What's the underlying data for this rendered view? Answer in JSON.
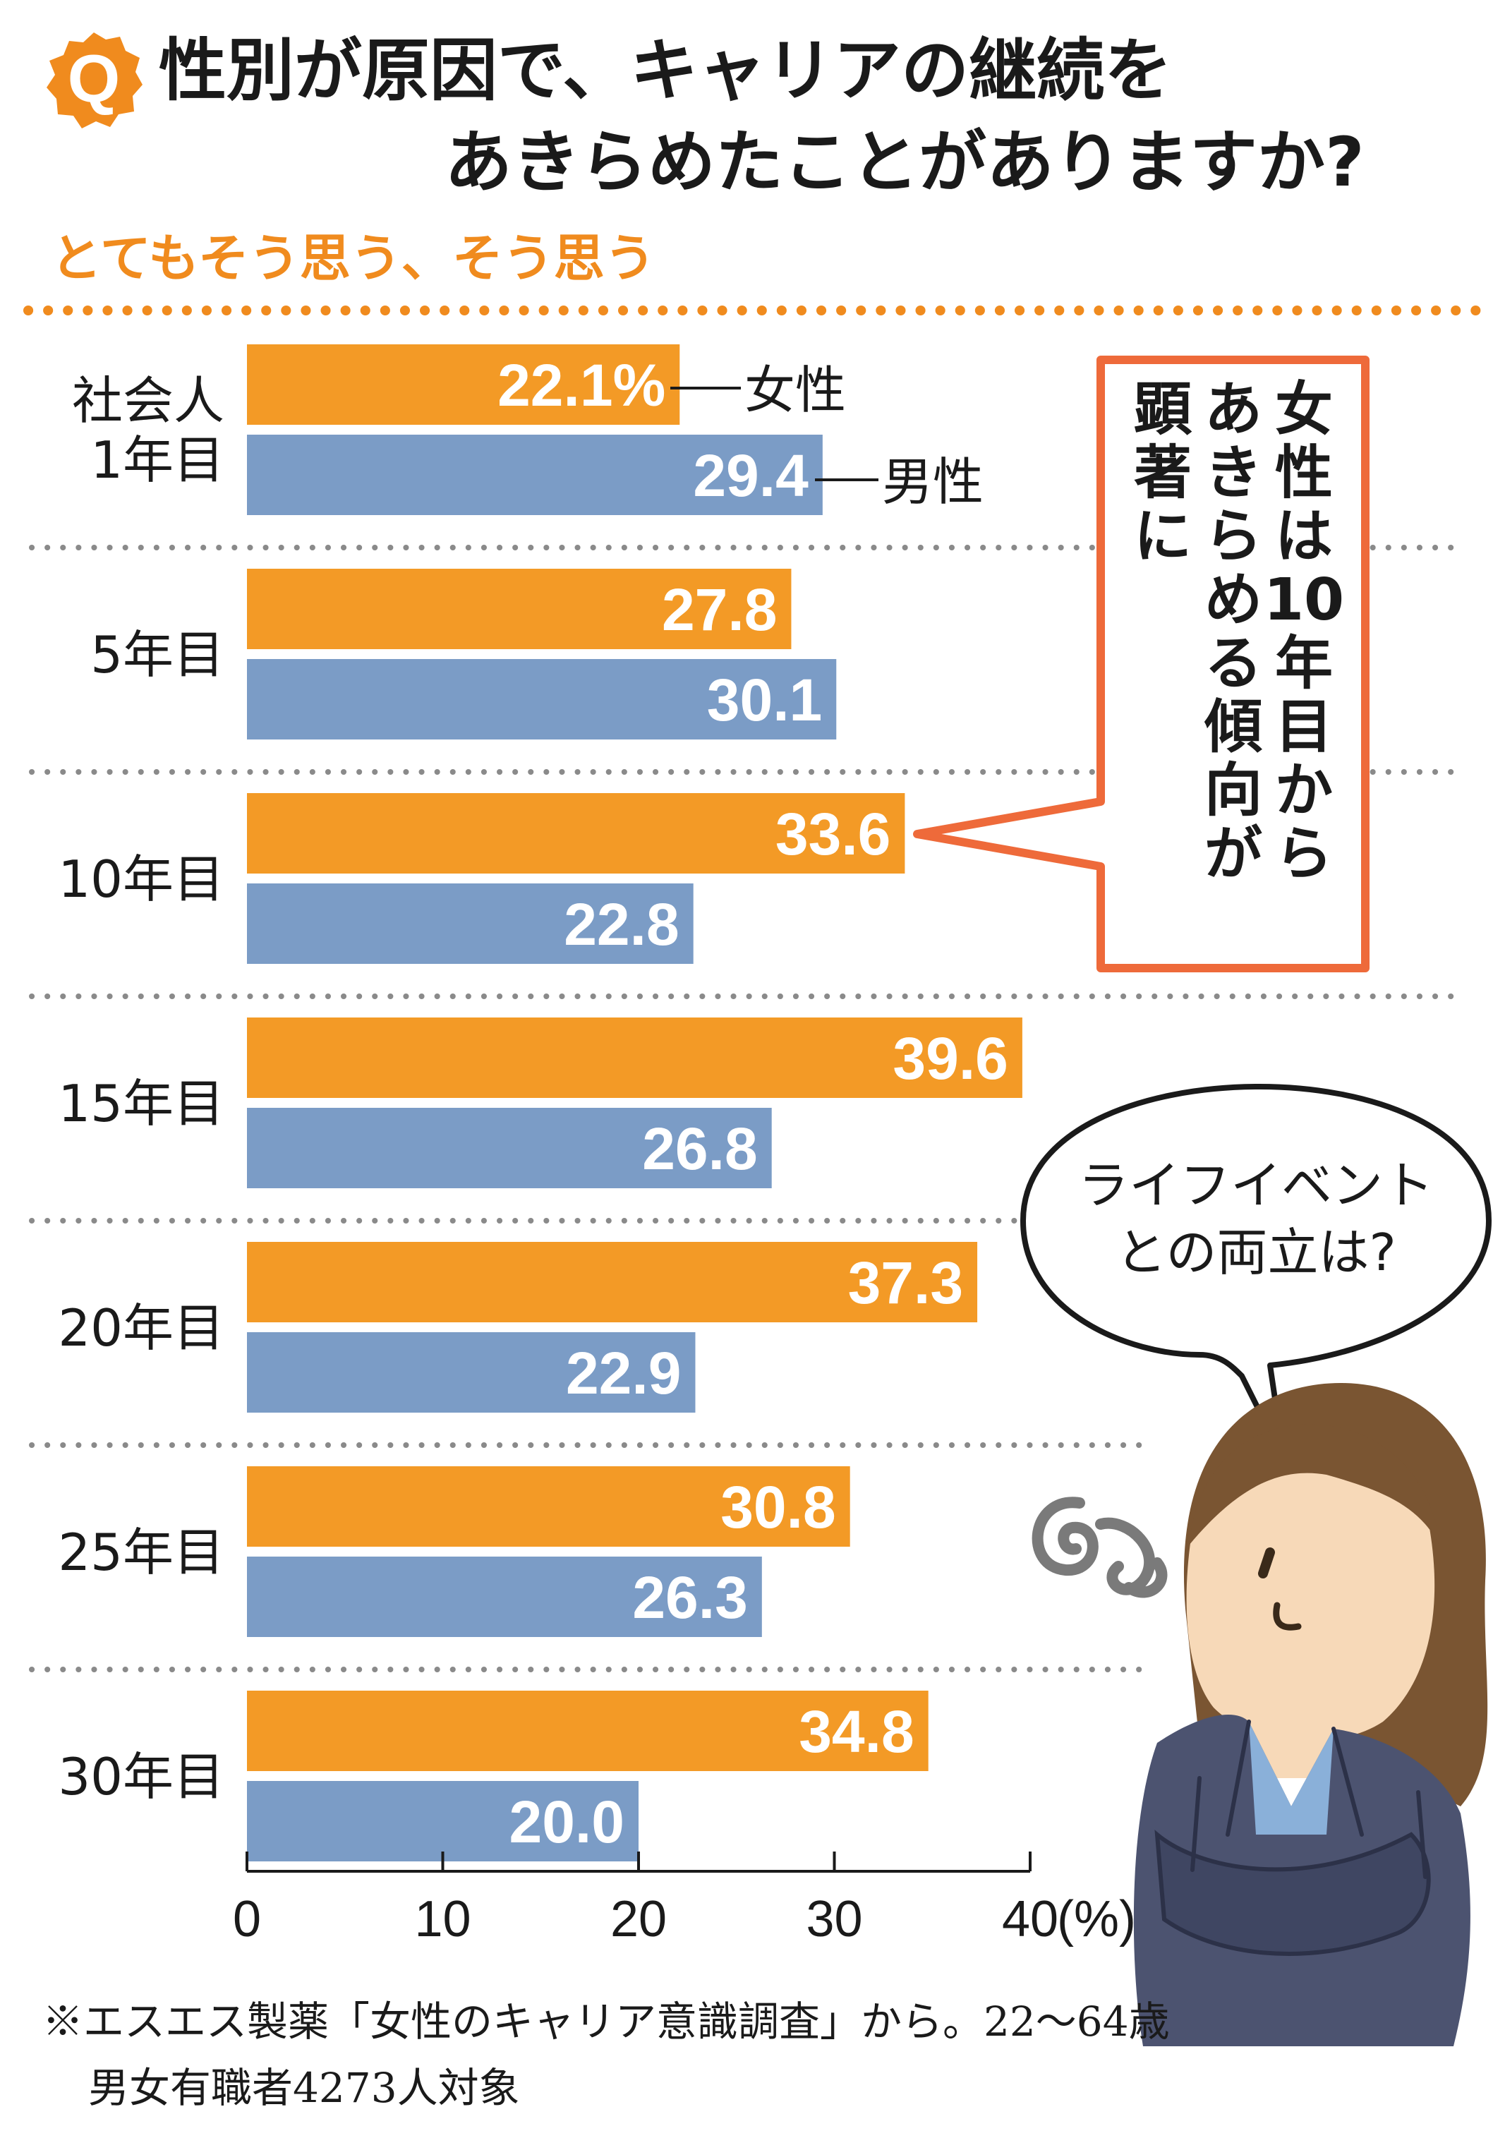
{
  "title": {
    "q_mark": "Q",
    "line1": "性別が原因で、キャリアの継続を",
    "line2": "あきらめたことがありますか?"
  },
  "subtitle": "とてもそう思う、そう思う",
  "legend": {
    "female": "女性",
    "male": "男性"
  },
  "callout": {
    "lines": [
      "女性は10年目から",
      "あきらめる傾向が",
      "顕著に"
    ]
  },
  "speech_bubble": {
    "lines": [
      "ライフイベント",
      "との両立は?"
    ]
  },
  "axis": {
    "unit": "(%)"
  },
  "note": {
    "line1": "※エスエス製薬「女性のキャリア意識調査」から。22〜64歳",
    "line2": "男女有職者4273人対象"
  },
  "colors": {
    "female": "#F39A26",
    "male": "#7B9CC6",
    "accent": "#F08B1E",
    "callout_border": "#EE6A3A",
    "hair": "#7A5532",
    "skin": "#F7D9B8",
    "jacket": "#4C5370",
    "shirt": "#8AB0D9"
  },
  "chart_data": {
    "type": "bar",
    "orientation": "horizontal",
    "categories": [
      "社会人\n1年目",
      "5年目",
      "10年目",
      "15年目",
      "20年目",
      "25年目",
      "30年目"
    ],
    "series": [
      {
        "name": "女性",
        "values": [
          22.1,
          27.8,
          33.6,
          39.6,
          37.3,
          30.8,
          34.8
        ]
      },
      {
        "name": "男性",
        "values": [
          29.4,
          30.1,
          22.8,
          26.8,
          22.9,
          26.3,
          20.0
        ]
      }
    ],
    "value_labels": {
      "女性": [
        "22.1%",
        "27.8",
        "33.6",
        "39.6",
        "37.3",
        "30.8",
        "34.8"
      ],
      "男性": [
        "29.4",
        "30.1",
        "22.8",
        "26.8",
        "22.9",
        "26.3",
        "20.0"
      ]
    },
    "xlim": [
      0,
      40
    ],
    "xticks": [
      0,
      10,
      20,
      30,
      40
    ],
    "title": "性別が原因で、キャリアの継続をあきらめたことがありますか?",
    "subtitle": "とてもそう思う、そう思う",
    "xlabel": "(%)",
    "ylabel": "",
    "grid": false,
    "legend": "inline labels on first group"
  }
}
